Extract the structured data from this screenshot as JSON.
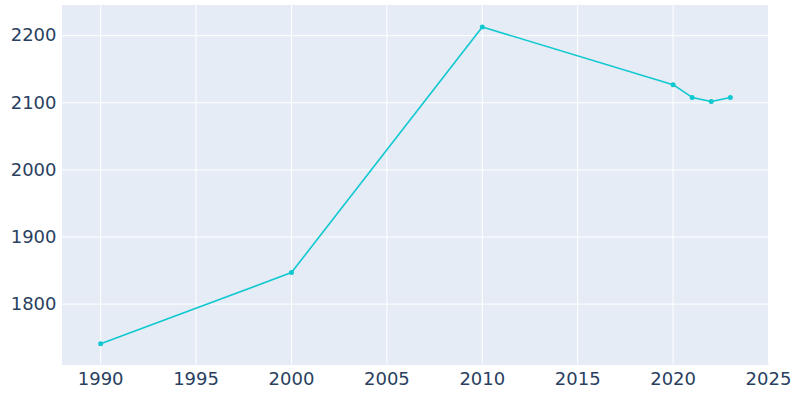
{
  "chart_data": {
    "type": "line",
    "x": [
      1990,
      2000,
      2010,
      2020,
      2021,
      2022,
      2023
    ],
    "values": [
      1741,
      1847,
      2213,
      2127,
      2108,
      2102,
      2108
    ],
    "color": "#0fc8d0",
    "marker": "circle",
    "xlim": [
      1988,
      2025
    ],
    "xticks": [
      1990,
      1995,
      2000,
      2005,
      2010,
      2015,
      2020,
      2025
    ],
    "ylim": [
      1710,
      2245
    ],
    "yticks": [
      1800,
      1900,
      2000,
      2100,
      2200
    ],
    "grid": true
  }
}
